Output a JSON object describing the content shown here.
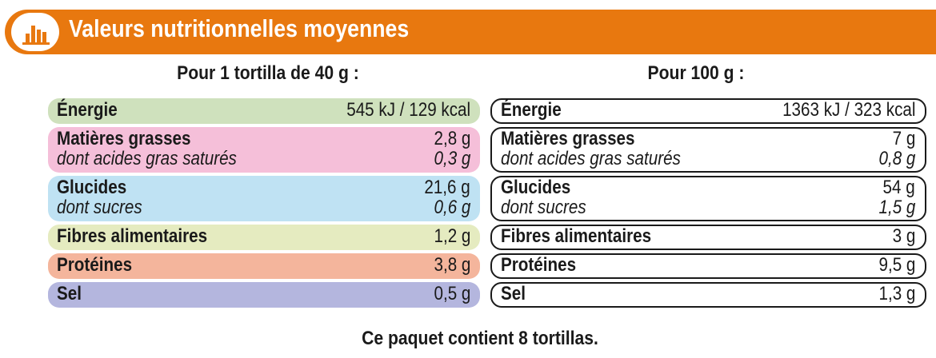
{
  "colors": {
    "banner": "#e8780f",
    "energie": "#cfe1bd",
    "matieres_grasses": "#f5bfd9",
    "glucides": "#bfe2f3",
    "fibres": "#e5ebc0",
    "proteines": "#f4b59c",
    "sel": "#b4b6de"
  },
  "banner": {
    "icon": "bar-chart-icon",
    "title": "Valeurs nutritionnelles moyennes"
  },
  "headings": {
    "per_portion": "Pour 1 tortilla de 40 g :",
    "per_100g": "Pour 100 g :"
  },
  "per_portion": {
    "energie": {
      "label": "Énergie",
      "value": "545 kJ / 129 kcal"
    },
    "matieres_grasses": {
      "label": "Matières grasses",
      "value": "2,8 g",
      "sub_label": "dont acides gras saturés",
      "sub_value": "0,3 g"
    },
    "glucides": {
      "label": "Glucides",
      "value": "21,6 g",
      "sub_label": "dont sucres",
      "sub_value": "0,6 g"
    },
    "fibres": {
      "label": "Fibres alimentaires",
      "value": "1,2 g"
    },
    "proteines": {
      "label": "Protéines",
      "value": "3,8 g"
    },
    "sel": {
      "label": "Sel",
      "value": "0,5 g"
    }
  },
  "per_100g": {
    "energie": {
      "label": "Énergie",
      "value": "1363 kJ / 323 kcal"
    },
    "matieres_grasses": {
      "label": "Matières grasses",
      "value": "7 g",
      "sub_label": "dont acides gras saturés",
      "sub_value": "0,8 g"
    },
    "glucides": {
      "label": "Glucides",
      "value": "54 g",
      "sub_label": "dont sucres",
      "sub_value": "1,5 g"
    },
    "fibres": {
      "label": "Fibres alimentaires",
      "value": "3 g"
    },
    "proteines": {
      "label": "Protéines",
      "value": "9,5 g"
    },
    "sel": {
      "label": "Sel",
      "value": "1,3 g"
    }
  },
  "footer": "Ce paquet contient 8 tortillas."
}
